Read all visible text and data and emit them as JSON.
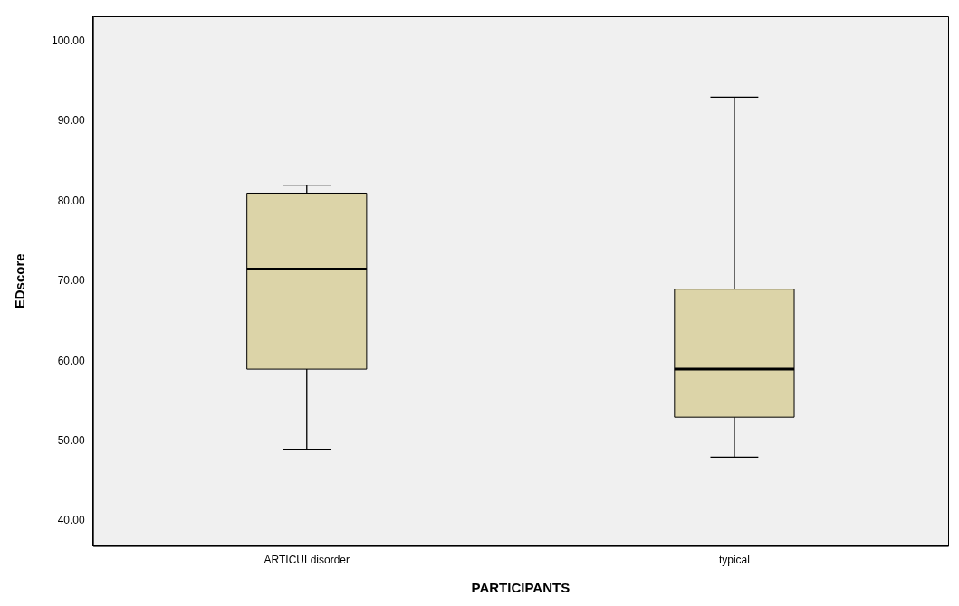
{
  "chart_data": {
    "type": "box",
    "xlabel": "PARTICIPANTS",
    "ylabel": "EDscore",
    "categories": [
      "ARTICULdisorder",
      "typical"
    ],
    "boxes": [
      {
        "low": 49,
        "q1": 59,
        "median": 71.5,
        "q3": 81,
        "high": 82
      },
      {
        "low": 48,
        "q1": 53,
        "median": 59,
        "q3": 69,
        "high": 93
      }
    ],
    "color": "#dcd4a8",
    "ylim": [
      36.9,
      103.1
    ],
    "yticks": [
      {
        "value": 40,
        "label": "40.00"
      },
      {
        "value": 50,
        "label": "50.00"
      },
      {
        "value": 60,
        "label": "60.00"
      },
      {
        "value": 70,
        "label": "70.00"
      },
      {
        "value": 80,
        "label": "80.00"
      },
      {
        "value": 90,
        "label": "90.00"
      },
      {
        "value": 100,
        "label": "100.00"
      }
    ],
    "grid": false,
    "legend": false
  }
}
